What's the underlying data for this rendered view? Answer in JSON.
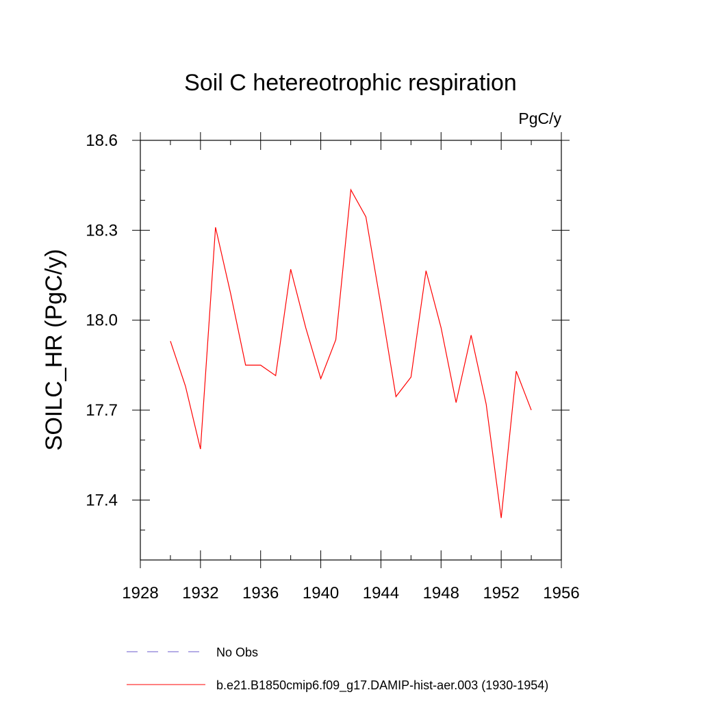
{
  "chart_data": {
    "type": "line",
    "title": "Soil C hetereotrophic respiration",
    "units_label": "PgC/y",
    "ylabel": "SOILC_HR  (PgC/y)",
    "xlabel": "",
    "xlim": [
      1928,
      1956
    ],
    "ylim": [
      17.2,
      18.6
    ],
    "x_ticks": [
      1928,
      1932,
      1936,
      1940,
      1944,
      1948,
      1952,
      1956
    ],
    "y_ticks": [
      17.4,
      17.7,
      18.0,
      18.3,
      18.6
    ],
    "x_tick_labels": [
      "1928",
      "1932",
      "1936",
      "1940",
      "1944",
      "1948",
      "1952",
      "1956"
    ],
    "y_tick_labels": [
      "17.4",
      "17.7",
      "18.0",
      "18.3",
      "18.6"
    ],
    "grid": false,
    "legend_position": "bottom",
    "series": [
      {
        "name": "b.e21.B1850cmip6.f09_g17.DAMIP-hist-aer.003 (1930-1954)",
        "color": "#ff0000",
        "style": "solid",
        "x": [
          1930,
          1931,
          1932,
          1933,
          1934,
          1935,
          1936,
          1937,
          1938,
          1939,
          1940,
          1941,
          1942,
          1943,
          1944,
          1945,
          1946,
          1947,
          1948,
          1949,
          1950,
          1951,
          1952,
          1953,
          1954
        ],
        "y": [
          17.93,
          17.78,
          17.57,
          18.31,
          18.09,
          17.85,
          17.85,
          17.815,
          18.17,
          17.975,
          17.805,
          17.935,
          18.435,
          18.345,
          18.05,
          17.745,
          17.81,
          18.165,
          17.975,
          17.725,
          17.95,
          17.72,
          17.34,
          17.83,
          17.7
        ]
      }
    ],
    "legend": [
      {
        "label": "No Obs",
        "color": "#6a5acd",
        "style": "dashed"
      },
      {
        "label": "b.e21.B1850cmip6.f09_g17.DAMIP-hist-aer.003 (1930-1954)",
        "color": "#ff0000",
        "style": "solid"
      }
    ]
  }
}
